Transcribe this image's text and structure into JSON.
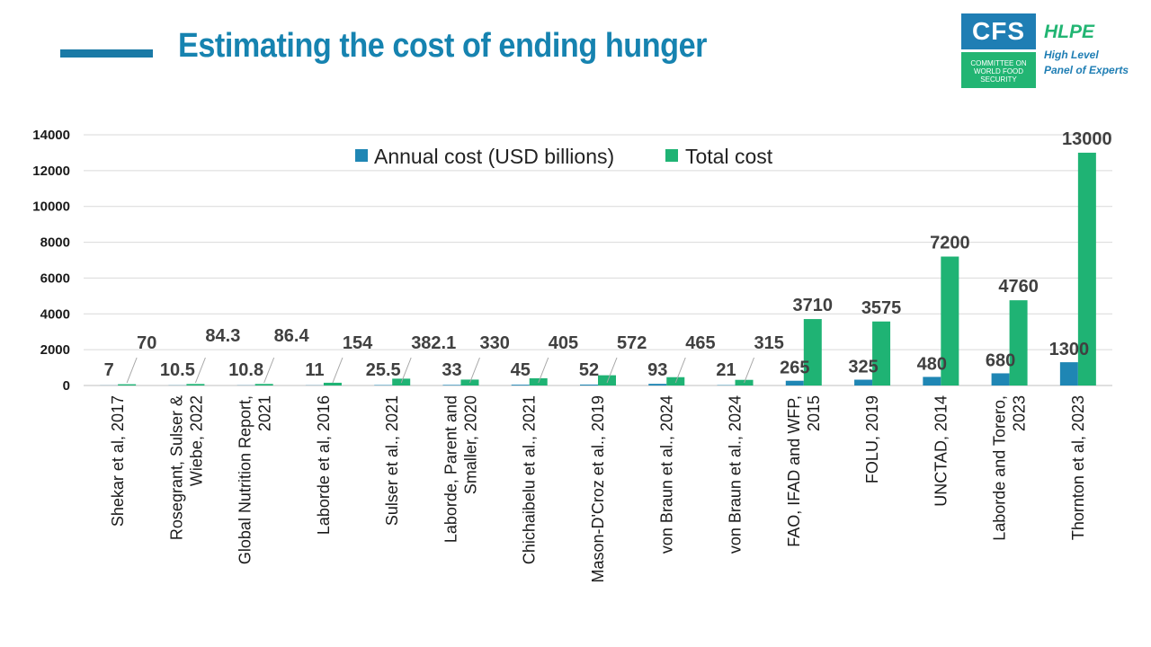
{
  "header": {
    "title": "Estimating the cost of ending hunger"
  },
  "logo": {
    "cfs": "CFS",
    "sub_line1": "COMMITTEE ON",
    "sub_line2": "WORLD FOOD",
    "sub_line3": "SECURITY",
    "hlpe": "HLPE",
    "hlpe_line1": "High Level",
    "hlpe_line2": "Panel of Experts"
  },
  "colors": {
    "annual": "#1f86b4",
    "total": "#1fb374",
    "title": "#1683b0"
  },
  "chart_data": {
    "type": "bar",
    "title": "",
    "xlabel": "",
    "ylabel": "",
    "ylim": [
      0,
      14000
    ],
    "yticks": [
      0,
      2000,
      4000,
      6000,
      8000,
      10000,
      12000,
      14000
    ],
    "legend_position": "top-center",
    "categories": [
      [
        "Shekar et al, 2017"
      ],
      [
        "Rosegrant, Sulser &",
        "Wiebe, 2022"
      ],
      [
        "Global Nutrition Report,",
        "2021"
      ],
      [
        "Laborde et al, 2016"
      ],
      [
        "Sulser et al., 2021"
      ],
      [
        "Laborde, Parent and",
        "Smaller, 2020"
      ],
      [
        "Chichaibelu et al., 2021"
      ],
      [
        "Mason-D'Croz et al., 2019"
      ],
      [
        "von Braun et al., 2024"
      ],
      [
        "von Braun et al., 2024"
      ],
      [
        "FAO, IFAD and WFP,",
        "2015"
      ],
      [
        "FOLU, 2019"
      ],
      [
        "UNCTAD, 2014"
      ],
      [
        "Laborde and Torero,",
        "2023"
      ],
      [
        "Thornton et al, 2023"
      ]
    ],
    "series": [
      {
        "name": "Annual cost (USD billions)",
        "values": [
          7,
          10.5,
          10.8,
          11,
          25.5,
          33,
          45,
          52,
          93,
          21,
          265,
          325,
          480,
          680,
          1300
        ],
        "labels": [
          "7",
          "10.5",
          "10.8",
          "11",
          "25.5",
          "33",
          "45",
          "52",
          "93",
          "21",
          "265",
          "325",
          "480",
          "680",
          "1300"
        ]
      },
      {
        "name": "Total cost",
        "values": [
          70,
          84.3,
          86.4,
          154,
          382.1,
          330,
          405,
          572,
          465,
          315,
          3710,
          3575,
          7200,
          4760,
          13000
        ],
        "labels": [
          "70",
          "84.3",
          "86.4",
          "154",
          "382.1",
          "330",
          "405",
          "572",
          "465",
          "315",
          "3710",
          "3575",
          "7200",
          "4760",
          "13000"
        ]
      }
    ]
  }
}
